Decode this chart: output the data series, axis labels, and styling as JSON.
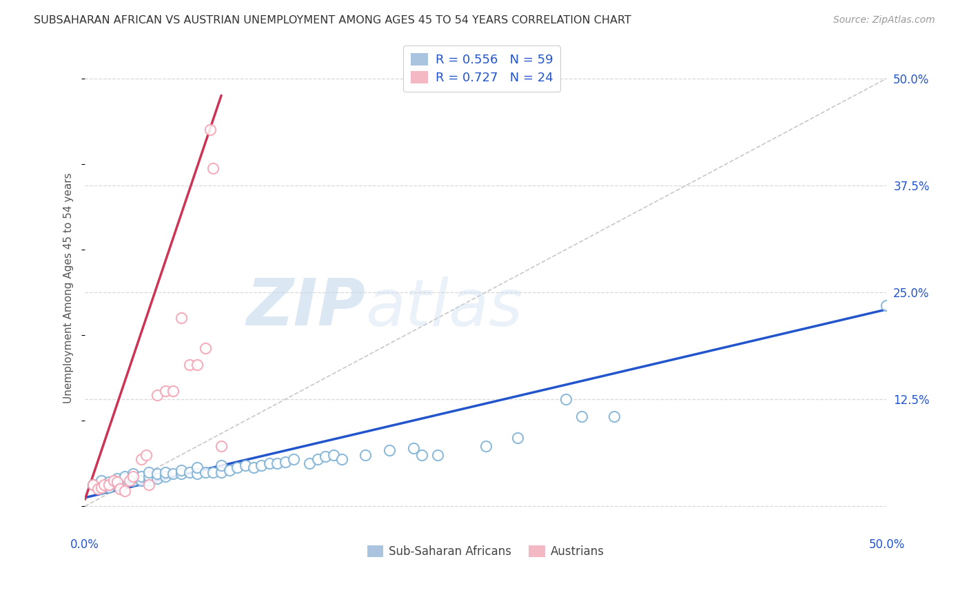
{
  "title": "SUBSAHARAN AFRICAN VS AUSTRIAN UNEMPLOYMENT AMONG AGES 45 TO 54 YEARS CORRELATION CHART",
  "source": "Source: ZipAtlas.com",
  "ylabel": "Unemployment Among Ages 45 to 54 years",
  "xlim": [
    0.0,
    0.5
  ],
  "ylim": [
    -0.03,
    0.54
  ],
  "xticks": [
    0.0,
    0.1,
    0.2,
    0.3,
    0.4,
    0.5
  ],
  "xticklabels": [
    "0.0%",
    "",
    "",
    "",
    "",
    "50.0%"
  ],
  "ytick_positions": [
    0.0,
    0.125,
    0.25,
    0.375,
    0.5
  ],
  "yticklabels_right": [
    "",
    "12.5%",
    "25.0%",
    "37.5%",
    "50.0%"
  ],
  "blue_scatter_color": "#7bafd4",
  "pink_scatter_color": "#f4a0b0",
  "blue_line_color": "#2255cc",
  "pink_line_color": "#cc3355",
  "diag_color": "#c8c8c8",
  "R_blue": 0.556,
  "N_blue": 59,
  "R_pink": 0.727,
  "N_pink": 24,
  "legend_label_blue": "Sub-Saharan Africans",
  "legend_label_pink": "Austrians",
  "watermark_zip": "ZIP",
  "watermark_atlas": "atlas",
  "background_color": "#ffffff",
  "grid_color": "#d8d8d8",
  "title_color": "#333333",
  "axis_label_color": "#555555",
  "tick_color": "#2255cc",
  "blue_scatter_x": [
    0.005,
    0.01,
    0.01,
    0.015,
    0.015,
    0.015,
    0.02,
    0.02,
    0.02,
    0.025,
    0.025,
    0.025,
    0.03,
    0.03,
    0.03,
    0.035,
    0.035,
    0.04,
    0.04,
    0.04,
    0.045,
    0.045,
    0.05,
    0.05,
    0.055,
    0.06,
    0.06,
    0.065,
    0.07,
    0.07,
    0.075,
    0.08,
    0.085,
    0.085,
    0.09,
    0.095,
    0.1,
    0.105,
    0.11,
    0.115,
    0.12,
    0.125,
    0.13,
    0.14,
    0.145,
    0.15,
    0.155,
    0.16,
    0.175,
    0.19,
    0.205,
    0.21,
    0.22,
    0.25,
    0.27,
    0.3,
    0.31,
    0.33,
    0.5
  ],
  "blue_scatter_y": [
    0.025,
    0.02,
    0.03,
    0.025,
    0.028,
    0.022,
    0.025,
    0.03,
    0.032,
    0.028,
    0.032,
    0.035,
    0.03,
    0.033,
    0.038,
    0.03,
    0.035,
    0.03,
    0.035,
    0.04,
    0.032,
    0.038,
    0.035,
    0.04,
    0.038,
    0.038,
    0.042,
    0.04,
    0.038,
    0.045,
    0.04,
    0.04,
    0.04,
    0.048,
    0.042,
    0.045,
    0.048,
    0.045,
    0.048,
    0.05,
    0.05,
    0.052,
    0.055,
    0.05,
    0.055,
    0.058,
    0.06,
    0.055,
    0.06,
    0.065,
    0.068,
    0.06,
    0.06,
    0.07,
    0.08,
    0.125,
    0.105,
    0.105,
    0.235
  ],
  "pink_scatter_x": [
    0.005,
    0.008,
    0.01,
    0.012,
    0.015,
    0.018,
    0.02,
    0.022,
    0.025,
    0.028,
    0.03,
    0.035,
    0.038,
    0.04,
    0.045,
    0.05,
    0.055,
    0.06,
    0.065,
    0.07,
    0.075,
    0.078,
    0.08,
    0.085
  ],
  "pink_scatter_y": [
    0.025,
    0.02,
    0.022,
    0.025,
    0.025,
    0.03,
    0.028,
    0.02,
    0.018,
    0.03,
    0.035,
    0.055,
    0.06,
    0.025,
    0.13,
    0.135,
    0.135,
    0.22,
    0.165,
    0.165,
    0.185,
    0.44,
    0.395,
    0.07
  ],
  "blue_line_x": [
    0.0,
    0.5
  ],
  "blue_line_y": [
    0.01,
    0.23
  ],
  "pink_line_x": [
    0.0,
    0.085
  ],
  "pink_line_y": [
    0.008,
    0.48
  ],
  "diag_line_x": [
    0.0,
    0.5
  ],
  "diag_line_y": [
    0.0,
    0.5
  ]
}
